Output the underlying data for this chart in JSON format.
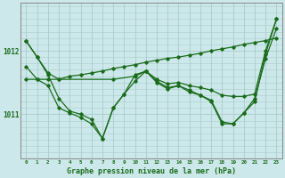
{
  "background_color": "#cce8ea",
  "grid_color": "#aacccc",
  "line_color": "#1a6b1a",
  "title": "Graphe pression niveau de la mer (hPa)",
  "yticks": [
    1011,
    1012
  ],
  "ylim": [
    1010.3,
    1012.75
  ],
  "xlim": [
    -0.5,
    23.5
  ],
  "series": [
    {
      "x": [
        0,
        1,
        2,
        3,
        4,
        5,
        6,
        7,
        8,
        9,
        10,
        11,
        12,
        13,
        14,
        15,
        16,
        17,
        18,
        19,
        20,
        21,
        22,
        23
      ],
      "y": [
        1011.55,
        1011.55,
        1011.55,
        1011.55,
        1011.6,
        1011.62,
        1011.65,
        1011.68,
        1011.72,
        1011.75,
        1011.78,
        1011.82,
        1011.85,
        1011.88,
        1011.9,
        1011.93,
        1011.96,
        1012.0,
        1012.03,
        1012.06,
        1012.1,
        1012.13,
        1012.16,
        1012.2
      ]
    },
    {
      "x": [
        0,
        1,
        2,
        3,
        8,
        10,
        11,
        12,
        13,
        14,
        15,
        16,
        17,
        18,
        19,
        20,
        21,
        22,
        23
      ],
      "y": [
        1012.15,
        1011.9,
        1011.65,
        1011.55,
        1011.55,
        1011.6,
        1011.68,
        1011.55,
        1011.48,
        1011.5,
        1011.45,
        1011.42,
        1011.38,
        1011.3,
        1011.28,
        1011.28,
        1011.32,
        1012.0,
        1012.5
      ]
    },
    {
      "x": [
        0,
        1,
        2,
        3,
        4,
        5,
        6,
        7,
        8,
        9,
        10,
        11,
        12,
        13,
        14,
        15,
        16,
        17,
        18,
        19,
        20,
        21,
        22,
        23
      ],
      "y": [
        1012.15,
        1011.9,
        1011.62,
        1011.25,
        1011.05,
        1011.0,
        1010.92,
        1010.62,
        1011.1,
        1011.32,
        1011.52,
        1011.68,
        1011.52,
        1011.42,
        1011.45,
        1011.35,
        1011.3,
        1011.22,
        1010.88,
        1010.85,
        1011.02,
        1011.2,
        1011.95,
        1012.5
      ]
    },
    {
      "x": [
        0,
        1,
        2,
        3,
        4,
        5,
        6,
        7,
        8,
        9,
        10,
        11,
        12,
        13,
        14,
        15,
        16,
        17,
        18,
        19,
        20,
        21,
        22,
        23
      ],
      "y": [
        1011.75,
        1011.55,
        1011.45,
        1011.1,
        1011.02,
        1010.95,
        1010.85,
        1010.62,
        1011.1,
        1011.32,
        1011.62,
        1011.68,
        1011.5,
        1011.4,
        1011.45,
        1011.38,
        1011.3,
        1011.2,
        1010.85,
        1010.85,
        1011.02,
        1011.25,
        1011.88,
        1012.35
      ]
    }
  ]
}
